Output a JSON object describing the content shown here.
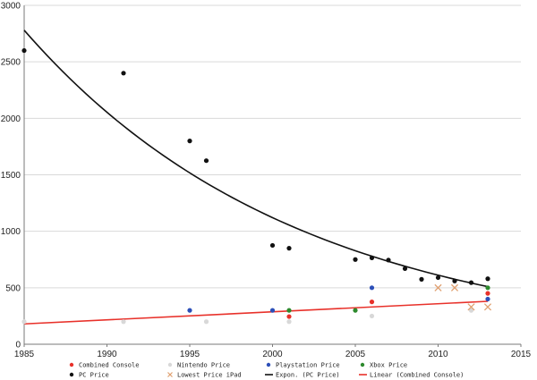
{
  "chart_data": {
    "type": "scatter",
    "title": "",
    "xlabel": "",
    "ylabel": "",
    "xlim": [
      1985,
      2015
    ],
    "ylim": [
      0,
      3000
    ],
    "x_ticks": [
      "1985",
      "1990",
      "1995",
      "2000",
      "2005",
      "2010",
      "2015"
    ],
    "y_ticks": [
      "0",
      "500",
      "1000",
      "1500",
      "2000",
      "2500",
      "3000"
    ],
    "grid": "horizontal",
    "legend_position": "bottom",
    "series": [
      {
        "name": "Combined Console",
        "kind": "points",
        "marker": "dot",
        "color": "#e8312a",
        "x": [
          2001,
          2006,
          2013
        ],
        "y": [
          245,
          375,
          450
        ]
      },
      {
        "name": "Nintendo Price",
        "kind": "points",
        "marker": "dot",
        "color": "#d8d8d8",
        "x": [
          1985,
          1991,
          1996,
          2001,
          2006,
          2012
        ],
        "y": [
          200,
          200,
          200,
          200,
          250,
          300
        ]
      },
      {
        "name": "Playstation Price",
        "kind": "points",
        "marker": "dot",
        "color": "#2c4fb8",
        "x": [
          1995,
          2000,
          2006,
          2013
        ],
        "y": [
          300,
          300,
          500,
          400
        ]
      },
      {
        "name": "Xbox Price",
        "kind": "points",
        "marker": "dot",
        "color": "#2d8a2d",
        "x": [
          2001,
          2005,
          2013
        ],
        "y": [
          300,
          300,
          500
        ]
      },
      {
        "name": "PC Price",
        "kind": "points",
        "marker": "dot",
        "color": "#111111",
        "x": [
          1985,
          1991,
          1995,
          1996,
          2000,
          2001,
          2005,
          2006,
          2007,
          2008,
          2009,
          2010,
          2011,
          2012,
          2013
        ],
        "y": [
          2600,
          2400,
          1800,
          1625,
          875,
          850,
          750,
          765,
          745,
          670,
          575,
          590,
          560,
          545,
          580
        ]
      },
      {
        "name": "Lowest Price iPad",
        "kind": "points",
        "marker": "x",
        "color": "#e0a070",
        "x": [
          2010,
          2011,
          2012,
          2013
        ],
        "y": [
          500,
          500,
          330,
          330
        ]
      },
      {
        "name": "Expon. (PC Price)",
        "kind": "line",
        "color": "#111111",
        "x": [
          1985,
          1990,
          1995,
          2000,
          2005,
          2010,
          2013
        ],
        "y": [
          2780,
          2060,
          1530,
          1130,
          840,
          620,
          510
        ]
      },
      {
        "name": "Linear (Combined Console)",
        "kind": "line",
        "color": "#e8312a",
        "x": [
          1985,
          2013
        ],
        "y": [
          180,
          380
        ]
      }
    ]
  }
}
